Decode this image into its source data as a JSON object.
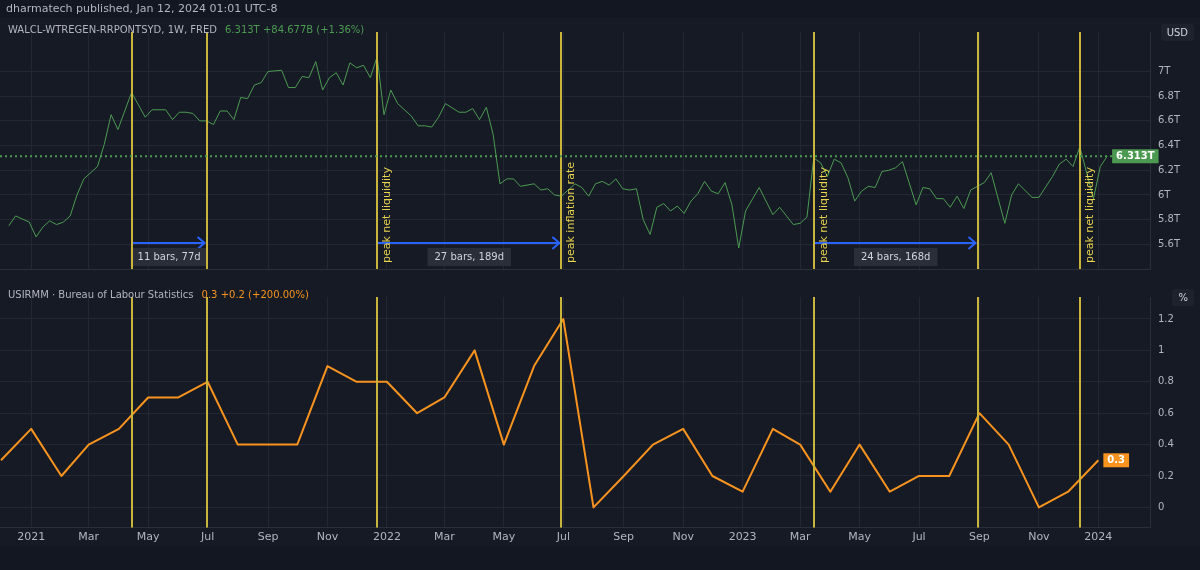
{
  "chart_data": [
    {
      "type": "line",
      "title": "WALCL-WTREGEN-RRPONTSYD, 1W, FRED",
      "subtitle": "6.313T  +84.677B (+1.36%)",
      "ylabel": "USD",
      "annotations": [
        "dharmatech published, Jan 12, 2024 01:01 UTC-8",
        "11 bars, 77d",
        "27 bars, 189d",
        "24 bars, 168d"
      ],
      "series": [
        {
          "color": "#4c9a52",
          "x": [
            "2020-12-09",
            "2020-12-16",
            "2020-12-30",
            "2021-01-06",
            "2021-01-13",
            "2021-01-20",
            "2021-01-27",
            "2021-02-03",
            "2021-02-10",
            "2021-02-17",
            "2021-02-24",
            "2021-03-10",
            "2021-03-17",
            "2021-03-24",
            "2021-03-31",
            "2021-04-14",
            "2021-04-28",
            "2021-05-05",
            "2021-05-19",
            "2021-05-26",
            "2021-06-02",
            "2021-06-09",
            "2021-06-16",
            "2021-06-23",
            "2021-06-30",
            "2021-07-07",
            "2021-07-14",
            "2021-07-21",
            "2021-07-28",
            "2021-08-04",
            "2021-08-11",
            "2021-08-18",
            "2021-08-25",
            "2021-09-01",
            "2021-09-15",
            "2021-09-22",
            "2021-09-29",
            "2021-10-06",
            "2021-10-13",
            "2021-10-20",
            "2021-10-27",
            "2021-11-03",
            "2021-11-10",
            "2021-11-17",
            "2021-11-24",
            "2021-12-01",
            "2021-12-08",
            "2021-12-15",
            "2021-12-22",
            "2021-12-29",
            "2022-01-05",
            "2022-01-12",
            "2022-01-26",
            "2022-02-02",
            "2022-02-09",
            "2022-02-16",
            "2022-02-23",
            "2022-03-02",
            "2022-03-16",
            "2022-03-23",
            "2022-03-30",
            "2022-04-06",
            "2022-04-13",
            "2022-04-20",
            "2022-04-27",
            "2022-05-04",
            "2022-05-11",
            "2022-05-18",
            "2022-06-01",
            "2022-06-08",
            "2022-06-15",
            "2022-06-22",
            "2022-06-29",
            "2022-07-13",
            "2022-07-20",
            "2022-07-27",
            "2022-08-03",
            "2022-08-10",
            "2022-08-17",
            "2022-08-24",
            "2022-08-31",
            "2022-09-07",
            "2022-09-14",
            "2022-09-21",
            "2022-09-28",
            "2022-10-05",
            "2022-10-12",
            "2022-10-19",
            "2022-10-26",
            "2022-11-02",
            "2022-11-09",
            "2022-11-16",
            "2022-11-23",
            "2022-11-30",
            "2022-12-07",
            "2022-12-14",
            "2022-12-21",
            "2022-12-28",
            "2023-01-04",
            "2023-01-18",
            "2023-02-01",
            "2023-02-08",
            "2023-02-22",
            "2023-03-01",
            "2023-03-08",
            "2023-03-15",
            "2023-03-22",
            "2023-03-29",
            "2023-04-05",
            "2023-04-12",
            "2023-04-19",
            "2023-04-26",
            "2023-05-03",
            "2023-05-10",
            "2023-05-17",
            "2023-05-24",
            "2023-05-31",
            "2023-06-07",
            "2023-06-14",
            "2023-06-28",
            "2023-07-05",
            "2023-07-12",
            "2023-07-19",
            "2023-07-26",
            "2023-08-02",
            "2023-08-09",
            "2023-08-16",
            "2023-08-23",
            "2023-09-06",
            "2023-09-13",
            "2023-09-27",
            "2023-10-04",
            "2023-10-11",
            "2023-10-25",
            "2023-11-01",
            "2023-11-15",
            "2023-11-22",
            "2023-11-29",
            "2023-12-06",
            "2023-12-13",
            "2023-12-27",
            "2024-01-03",
            "2024-01-10"
          ],
          "values": [
            5.75,
            5.83,
            5.78,
            5.66,
            5.74,
            5.79,
            5.76,
            5.78,
            5.83,
            6.0,
            6.13,
            6.23,
            6.41,
            6.65,
            6.53,
            6.83,
            6.63,
            6.69,
            6.69,
            6.61,
            6.67,
            6.67,
            6.66,
            6.6,
            6.6,
            6.57,
            6.68,
            6.68,
            6.61,
            6.79,
            6.78,
            6.89,
            6.91,
            7.0,
            7.01,
            6.87,
            6.87,
            6.96,
            6.95,
            7.08,
            6.85,
            6.95,
            6.99,
            6.89,
            7.07,
            7.03,
            7.05,
            6.95,
            7.12,
            6.65,
            6.85,
            6.74,
            6.64,
            6.56,
            6.56,
            6.55,
            6.63,
            6.74,
            6.67,
            6.67,
            6.7,
            6.61,
            6.71,
            6.49,
            6.09,
            6.13,
            6.13,
            6.07,
            6.09,
            6.04,
            6.05,
            6.0,
            5.99,
            6.09,
            6.06,
            5.99,
            6.09,
            6.11,
            6.08,
            6.13,
            6.05,
            6.04,
            6.05,
            5.8,
            5.68,
            5.9,
            5.93,
            5.87,
            5.91,
            5.85,
            5.95,
            6.01,
            6.11,
            6.03,
            6.01,
            6.1,
            5.92,
            5.57,
            5.87,
            6.06,
            5.84,
            5.9,
            5.76,
            5.77,
            5.82,
            6.3,
            6.26,
            6.15,
            6.29,
            6.26,
            6.14,
            5.95,
            6.03,
            6.07,
            6.06,
            6.19,
            6.2,
            6.22,
            6.27,
            5.92,
            6.06,
            6.05,
            5.97,
            5.97,
            5.9,
            5.99,
            5.89,
            6.04,
            6.1,
            6.18,
            5.77,
            6.0,
            6.09,
            5.98,
            5.98,
            6.15,
            6.25,
            6.29,
            6.23,
            6.39,
            5.97,
            6.23,
            6.313
          ],
          "value_labels": [
            null,
            null,
            null,
            null,
            null,
            null,
            null,
            null,
            null,
            null,
            null,
            null,
            null,
            null,
            null,
            null,
            null,
            null,
            null,
            null,
            null,
            null,
            null,
            null,
            null,
            null,
            null,
            null,
            null,
            null,
            null,
            null,
            null,
            null,
            null,
            null,
            null,
            null,
            null,
            null,
            null,
            null,
            null,
            null,
            null,
            null,
            null,
            null,
            null,
            null,
            null,
            null,
            null,
            null,
            null,
            null,
            null,
            null,
            null,
            null,
            null,
            null,
            null,
            null,
            null,
            null,
            null,
            null,
            null,
            null,
            null,
            null,
            null,
            null,
            null,
            null,
            null,
            null,
            null,
            null,
            null,
            null,
            null,
            null,
            null,
            null,
            null,
            null,
            null,
            null,
            null,
            null,
            null,
            null,
            null,
            null,
            null,
            null,
            null,
            null,
            null,
            null,
            null,
            null,
            null,
            null,
            null,
            null,
            null,
            null,
            null,
            null,
            null,
            null,
            null,
            null,
            null,
            null,
            null,
            null,
            null,
            null,
            null,
            null,
            null,
            null,
            null,
            null,
            null,
            null,
            null,
            null,
            null,
            null,
            null,
            null,
            null,
            null,
            null,
            null,
            null,
            null,
            "6.313T"
          ]
        }
      ],
      "xlim": [
        "2020-11-30",
        "2024-02-23"
      ],
      "xticks": [
        {
          "value": "2021-01-01",
          "label": null
        },
        {
          "value": "2021-03-01",
          "label": null
        },
        {
          "value": "2021-05-01",
          "label": null
        },
        {
          "value": "2021-07-01",
          "label": null
        },
        {
          "value": "2021-09-01",
          "label": null
        },
        {
          "value": "2021-11-01",
          "label": null
        },
        {
          "value": "2022-01-01",
          "label": null
        },
        {
          "value": "2022-03-01",
          "label": null
        },
        {
          "value": "2022-05-01",
          "label": null
        },
        {
          "value": "2022-07-01",
          "label": null
        },
        {
          "value": "2022-09-01",
          "label": null
        },
        {
          "value": "2022-11-01",
          "label": null
        },
        {
          "value": "2023-01-01",
          "label": null
        },
        {
          "value": "2023-03-01",
          "label": null
        },
        {
          "value": "2023-05-01",
          "label": null
        },
        {
          "value": "2023-07-01",
          "label": null
        },
        {
          "value": "2023-09-01",
          "label": null
        },
        {
          "value": "2023-11-01",
          "label": null
        },
        {
          "value": "2024-01-01",
          "label": null
        }
      ],
      "ylim": [
        5.4,
        7.32
      ],
      "yticks": [
        {
          "value": 5.6,
          "label": "5.6T"
        },
        {
          "value": 5.8,
          "label": "5.8T"
        },
        {
          "value": 6,
          "label": "6T"
        },
        {
          "value": 6.2,
          "label": "6.2T"
        },
        {
          "value": 6.4,
          "label": "6.4T"
        },
        {
          "value": 6.6,
          "label": "6.6T"
        },
        {
          "value": 6.8,
          "label": "6.8T"
        },
        {
          "value": 7,
          "label": "7T"
        }
      ],
      "grid": true,
      "tick_labels": "y",
      "marker": "none",
      "ref_lines": [
        {
          "axis": "x",
          "value": "2021-04-14",
          "label": null,
          "color": "#c9b43c"
        },
        {
          "axis": "x",
          "value": "2021-06-30",
          "label": null,
          "color": "#c9b43c"
        },
        {
          "axis": "x",
          "value": "2021-12-22",
          "label": "peak net liquidity",
          "color": "#c9b43c"
        },
        {
          "axis": "x",
          "value": "2022-06-29",
          "label": "peak inflation rate",
          "color": "#c9b43c"
        },
        {
          "axis": "x",
          "value": "2023-03-15",
          "label": "peak net liquidity",
          "color": "#c9b43c"
        },
        {
          "axis": "x",
          "value": "2023-08-30",
          "label": null,
          "color": "#c9b43c"
        },
        {
          "axis": "x",
          "value": "2023-12-13",
          "label": "peak net liquidity",
          "color": "#c9b43c"
        },
        {
          "axis": "y",
          "value": 6.313,
          "label": null,
          "color": "#4c9a52",
          "line_style": "dotted"
        }
      ]
    },
    {
      "type": "line",
      "title": "USIRMM · Bureau of Labour Statistics",
      "subtitle": "0.3  +0.2 (+200.00%)",
      "ylabel": "%",
      "series": [
        {
          "color": "#f7931e",
          "x": [
            "2020-12",
            "2021-01",
            "2021-02",
            "2021-03",
            "2021-04",
            "2021-05",
            "2021-06",
            "2021-07",
            "2021-08",
            "2021-09",
            "2021-10",
            "2021-11",
            "2021-12",
            "2022-01",
            "2022-02",
            "2022-03",
            "2022-04",
            "2022-05",
            "2022-06",
            "2022-07",
            "2022-08",
            "2022-09",
            "2022-10",
            "2022-11",
            "2022-12",
            "2023-01",
            "2023-02",
            "2023-03",
            "2023-04",
            "2023-05",
            "2023-06",
            "2023-07",
            "2023-08",
            "2023-09",
            "2023-10",
            "2023-11",
            "2023-12",
            "2024-01"
          ],
          "values": [
            0.3,
            0.5,
            0.2,
            0.4,
            0.5,
            0.7,
            0.7,
            0.8,
            0.4,
            0.4,
            0.4,
            0.9,
            0.8,
            0.8,
            0.6,
            0.7,
            1.0,
            0.4,
            0.9,
            1.2,
            0.0,
            0.2,
            0.4,
            0.5,
            0.2,
            0.1,
            0.5,
            0.4,
            0.1,
            0.4,
            0.1,
            0.2,
            0.2,
            0.6,
            0.4,
            0.0,
            0.1,
            0.3
          ],
          "value_labels": [
            null,
            null,
            null,
            null,
            null,
            null,
            null,
            null,
            null,
            null,
            null,
            null,
            null,
            null,
            null,
            null,
            null,
            null,
            null,
            null,
            null,
            null,
            null,
            null,
            null,
            null,
            null,
            null,
            null,
            null,
            null,
            null,
            null,
            null,
            null,
            null,
            null,
            "0.3"
          ]
        }
      ],
      "xlim": [
        "2020-11-30",
        "2024-02-23"
      ],
      "xticks": [
        {
          "value": "2021-01-01",
          "label": "2021"
        },
        {
          "value": "2021-03-01",
          "label": "Mar"
        },
        {
          "value": "2021-05-01",
          "label": "May"
        },
        {
          "value": "2021-07-01",
          "label": "Jul"
        },
        {
          "value": "2021-09-01",
          "label": "Sep"
        },
        {
          "value": "2021-11-01",
          "label": "Nov"
        },
        {
          "value": "2022-01-01",
          "label": "2022"
        },
        {
          "value": "2022-03-01",
          "label": "Mar"
        },
        {
          "value": "2022-05-01",
          "label": "May"
        },
        {
          "value": "2022-07-01",
          "label": "Jul"
        },
        {
          "value": "2022-09-01",
          "label": "Sep"
        },
        {
          "value": "2022-11-01",
          "label": "Nov"
        },
        {
          "value": "2023-01-01",
          "label": "2023"
        },
        {
          "value": "2023-03-01",
          "label": "Mar"
        },
        {
          "value": "2023-05-01",
          "label": "May"
        },
        {
          "value": "2023-07-01",
          "label": "Jul"
        },
        {
          "value": "2023-09-01",
          "label": "Sep"
        },
        {
          "value": "2023-11-01",
          "label": "Nov"
        },
        {
          "value": "2024-01-01",
          "label": "2024"
        }
      ],
      "ylim": [
        -0.13,
        1.34
      ],
      "yticks": [
        0,
        0.2,
        0.4,
        0.6,
        0.8,
        1,
        1.2
      ],
      "grid": true,
      "marker": "none",
      "ref_lines": [
        {
          "axis": "x",
          "value": "2021-04-14",
          "color": "#c9b43c"
        },
        {
          "axis": "x",
          "value": "2021-06-30",
          "color": "#c9b43c"
        },
        {
          "axis": "x",
          "value": "2021-12-22",
          "color": "#c9b43c"
        },
        {
          "axis": "x",
          "value": "2022-06-29",
          "color": "#c9b43c"
        },
        {
          "axis": "x",
          "value": "2023-03-15",
          "color": "#c9b43c"
        },
        {
          "axis": "x",
          "value": "2023-08-30",
          "color": "#c9b43c"
        },
        {
          "axis": "x",
          "value": "2023-12-13",
          "color": "#c9b43c"
        }
      ]
    }
  ]
}
